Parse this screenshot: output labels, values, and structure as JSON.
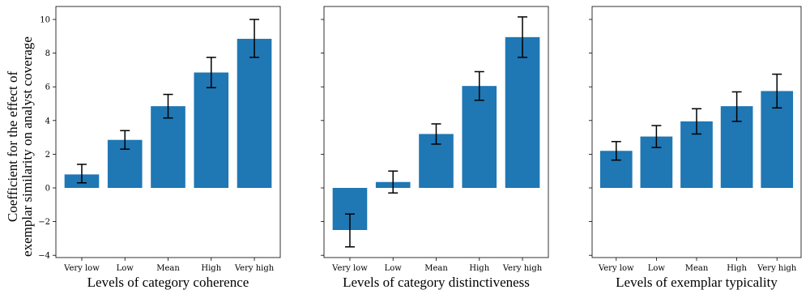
{
  "colors": {
    "bar": "#1f77b4",
    "error": "#000000",
    "axis": "#000000"
  },
  "ylabel_lines": [
    "Coefficient for the effect of",
    "exemplar similarity on analyst coverage"
  ],
  "chart_data": [
    {
      "type": "bar",
      "categories": [
        "Very low",
        "Low",
        "Mean",
        "High",
        "Very high"
      ],
      "values": [
        0.8,
        2.85,
        4.85,
        6.85,
        8.85
      ],
      "error_low": [
        0.3,
        2.3,
        4.15,
        5.95,
        7.75
      ],
      "error_high": [
        1.4,
        3.4,
        5.55,
        7.75,
        10.0
      ],
      "xlabel": "Levels of category coherence",
      "ylabel": "Coefficient for the effect of exemplar similarity on analyst coverage",
      "yticks": [
        -4,
        -2,
        0,
        2,
        4,
        6,
        8,
        10
      ],
      "ylim": [
        -4.2,
        10.6
      ],
      "grid": false
    },
    {
      "type": "bar",
      "categories": [
        "Very low",
        "Low",
        "Mean",
        "High",
        "Very high"
      ],
      "values": [
        -2.5,
        0.35,
        3.2,
        6.05,
        8.95
      ],
      "error_low": [
        -3.5,
        -0.3,
        2.6,
        5.2,
        7.75
      ],
      "error_high": [
        -1.55,
        1.0,
        3.8,
        6.9,
        10.15
      ],
      "xlabel": "Levels of category distinctiveness",
      "ylim": [
        -4.2,
        10.6
      ],
      "grid": false
    },
    {
      "type": "bar",
      "categories": [
        "Very low",
        "Low",
        "Mean",
        "High",
        "Very high"
      ],
      "values": [
        2.2,
        3.05,
        3.95,
        4.85,
        5.75
      ],
      "error_low": [
        1.65,
        2.4,
        3.2,
        3.95,
        4.75
      ],
      "error_high": [
        2.75,
        3.7,
        4.7,
        5.7,
        6.75
      ],
      "xlabel": "Levels of exemplar typicality",
      "ylim": [
        -4.2,
        10.6
      ],
      "grid": false
    }
  ]
}
